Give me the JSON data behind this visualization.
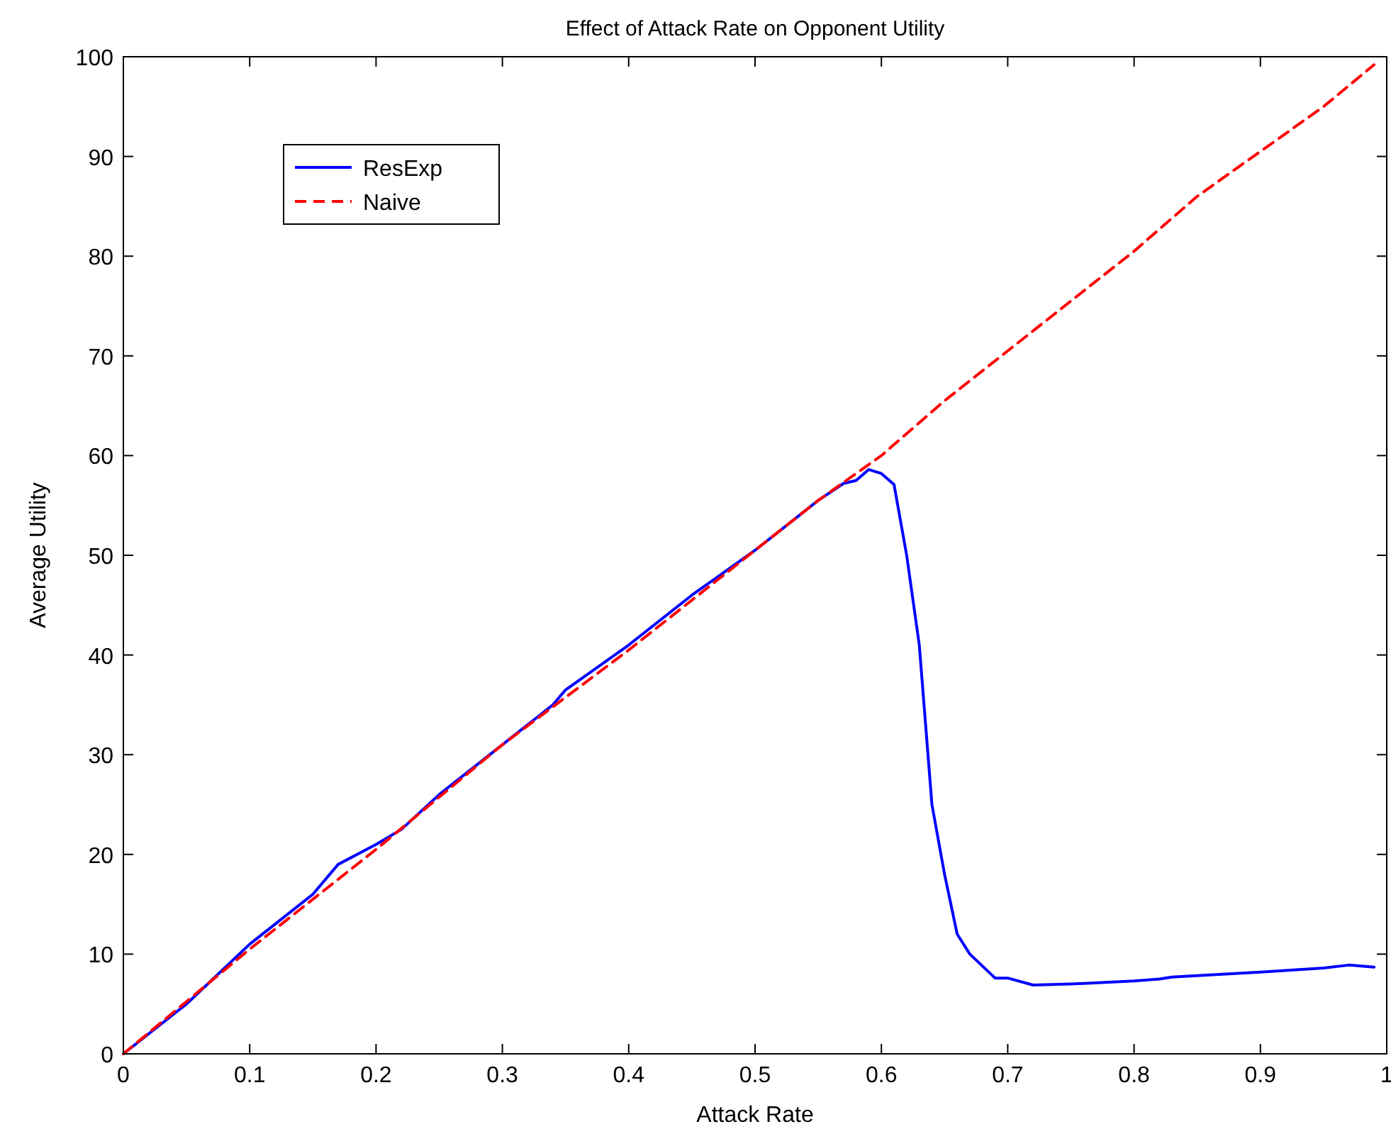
{
  "chart_data": {
    "type": "line",
    "title": "Effect of Attack Rate on Opponent Utility",
    "xlabel": "Attack Rate",
    "ylabel": "Average Utility",
    "xlim": [
      0,
      1
    ],
    "ylim": [
      0,
      100
    ],
    "xticks": [
      0,
      0.1,
      0.2,
      0.3,
      0.4,
      0.5,
      0.6,
      0.7,
      0.8,
      0.9,
      1
    ],
    "yticks": [
      0,
      10,
      20,
      30,
      40,
      50,
      60,
      70,
      80,
      90,
      100
    ],
    "grid": false,
    "legend": "top left",
    "series": [
      {
        "name": "ResExp",
        "color": "#0000ff",
        "line_style": "solid",
        "x": [
          0,
          0.05,
          0.1,
          0.15,
          0.17,
          0.2,
          0.22,
          0.25,
          0.3,
          0.33,
          0.34,
          0.35,
          0.4,
          0.45,
          0.5,
          0.52,
          0.55,
          0.57,
          0.58,
          0.59,
          0.6,
          0.61,
          0.62,
          0.63,
          0.64,
          0.65,
          0.66,
          0.67,
          0.69,
          0.7,
          0.72,
          0.75,
          0.8,
          0.82,
          0.83,
          0.9,
          0.95,
          0.97,
          0.99
        ],
        "values": [
          0,
          5,
          11,
          16,
          19,
          21,
          22.5,
          26,
          31,
          34,
          35,
          36.5,
          41,
          46,
          50.5,
          52.5,
          55.5,
          57.2,
          57.5,
          58.6,
          58.2,
          57.1,
          50,
          41,
          25,
          18,
          12,
          10,
          7.6,
          7.6,
          6.9,
          7,
          7.3,
          7.5,
          7.7,
          8.2,
          8.6,
          8.9,
          8.7
        ]
      },
      {
        "name": "Naive",
        "color": "#ff0000",
        "line_style": "dashed",
        "x": [
          0,
          0.1,
          0.2,
          0.3,
          0.4,
          0.5,
          0.55,
          0.6,
          0.65,
          0.7,
          0.75,
          0.8,
          0.85,
          0.9,
          0.95,
          0.99
        ],
        "values": [
          0,
          10.5,
          20.5,
          31,
          40.5,
          50.5,
          55.5,
          60,
          65.5,
          70.5,
          75.5,
          80.5,
          86,
          90.5,
          95,
          99.2
        ]
      }
    ]
  }
}
